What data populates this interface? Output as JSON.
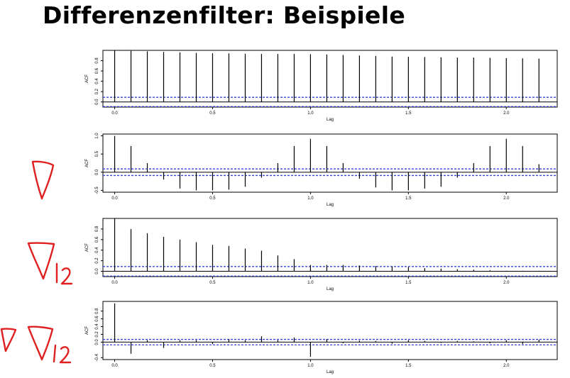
{
  "slide": {
    "title": "Differenzenfilter: Beispiele"
  },
  "colors": {
    "bars": "#000000",
    "confidence_band": "#3344dd",
    "annotation_ink": "#e02020"
  },
  "chart_data": [
    {
      "type": "bar",
      "plot_style": "acf_lollipop",
      "xlabel": "Lag",
      "ylabel": "ACF",
      "xlim": [
        -0.06,
        2.26
      ],
      "ylim": [
        -0.1,
        1.0
      ],
      "xticks": [
        "0.0",
        "0.5",
        "1.0",
        "1.5",
        "2.0"
      ],
      "yticks": [
        "0.0",
        "0.2",
        "0.4",
        "0.6",
        "0.8"
      ],
      "confidence_band": 0.09,
      "lags": [
        0.0,
        0.0833,
        0.1667,
        0.25,
        0.3333,
        0.4167,
        0.5,
        0.5833,
        0.6667,
        0.75,
        0.8333,
        0.9167,
        1.0,
        1.0833,
        1.1667,
        1.25,
        1.3333,
        1.4167,
        1.5,
        1.5833,
        1.6667,
        1.75,
        1.8333,
        1.9167,
        2.0,
        2.0833,
        2.1667
      ],
      "values": [
        1.0,
        0.99,
        0.98,
        0.97,
        0.96,
        0.95,
        0.945,
        0.94,
        0.935,
        0.93,
        0.93,
        0.93,
        0.925,
        0.92,
        0.91,
        0.9,
        0.89,
        0.88,
        0.875,
        0.87,
        0.865,
        0.86,
        0.86,
        0.855,
        0.85,
        0.845,
        0.84
      ]
    },
    {
      "type": "bar",
      "plot_style": "acf_lollipop",
      "xlabel": "Lag",
      "ylabel": "ACF",
      "xlim": [
        -0.06,
        2.26
      ],
      "ylim": [
        -0.55,
        1.05
      ],
      "xticks": [
        "0.0",
        "0.5",
        "1.0",
        "1.5",
        "2.0"
      ],
      "yticks": [
        "-0.5",
        "0.0",
        "0.5",
        "1.0"
      ],
      "confidence_band": 0.09,
      "lags": [
        0.0,
        0.0833,
        0.1667,
        0.25,
        0.3333,
        0.4167,
        0.5,
        0.5833,
        0.6667,
        0.75,
        0.8333,
        0.9167,
        1.0,
        1.0833,
        1.1667,
        1.25,
        1.3333,
        1.4167,
        1.5,
        1.5833,
        1.6667,
        1.75,
        1.8333,
        1.9167,
        2.0,
        2.0833,
        2.1667
      ],
      "values": [
        1.0,
        0.72,
        0.25,
        -0.2,
        -0.45,
        -0.5,
        -0.5,
        -0.48,
        -0.4,
        -0.15,
        0.25,
        0.72,
        0.92,
        0.72,
        0.25,
        -0.18,
        -0.42,
        -0.5,
        -0.5,
        -0.45,
        -0.4,
        -0.15,
        0.25,
        0.72,
        0.92,
        0.72,
        0.22
      ]
    },
    {
      "type": "bar",
      "plot_style": "acf_lollipop",
      "xlabel": "Lag",
      "ylabel": "ACF",
      "xlim": [
        -0.06,
        2.26
      ],
      "ylim": [
        -0.1,
        1.0
      ],
      "xticks": [
        "0.0",
        "0.5",
        "1.0",
        "1.5",
        "2.0"
      ],
      "yticks": [
        "0.0",
        "0.2",
        "0.4",
        "0.6",
        "0.8"
      ],
      "confidence_band": 0.09,
      "lags": [
        0.0,
        0.0833,
        0.1667,
        0.25,
        0.3333,
        0.4167,
        0.5,
        0.5833,
        0.6667,
        0.75,
        0.8333,
        0.9167,
        1.0,
        1.0833,
        1.1667,
        1.25,
        1.3333,
        1.4167,
        1.5,
        1.5833,
        1.6667,
        1.75,
        1.8333,
        1.9167,
        2.0,
        2.0833,
        2.1667
      ],
      "values": [
        1.0,
        0.8,
        0.72,
        0.65,
        0.6,
        0.55,
        0.5,
        0.48,
        0.43,
        0.39,
        0.3,
        0.23,
        0.12,
        0.12,
        0.12,
        0.11,
        0.1,
        0.09,
        0.08,
        0.06,
        0.05,
        0.04,
        0.03,
        0.02,
        0.01,
        0.01,
        0.01
      ]
    },
    {
      "type": "bar",
      "plot_style": "acf_lollipop",
      "xlabel": "Lag",
      "ylabel": "ACF",
      "xlim": [
        -0.06,
        2.26
      ],
      "ylim": [
        -0.45,
        1.05
      ],
      "xticks": [
        "0.0",
        "0.5",
        "1.0",
        "1.5",
        "2.0"
      ],
      "yticks": [
        "-0.4",
        "0.0",
        "0.2",
        "0.4",
        "0.6",
        "0.8"
      ],
      "confidence_band": 0.07,
      "lags": [
        0.0,
        0.0833,
        0.1667,
        0.25,
        0.3333,
        0.4167,
        0.5,
        0.5833,
        0.6667,
        0.75,
        0.8333,
        0.9167,
        1.0,
        1.0833,
        1.1667,
        1.25,
        1.3333,
        1.4167,
        1.5,
        1.5833,
        1.6667,
        1.75,
        1.8333,
        1.9167,
        2.0,
        2.0833,
        2.1667
      ],
      "values": [
        1.0,
        -0.3,
        0.05,
        -0.15,
        0.05,
        0.05,
        -0.05,
        0.08,
        0.05,
        0.15,
        0.05,
        0.12,
        -0.38,
        0.08,
        -0.03,
        0.04,
        0.03,
        -0.04,
        0.05,
        0.03,
        -0.02,
        0.03,
        0.02,
        -0.03,
        0.05,
        -0.05,
        0.06
      ]
    }
  ]
}
